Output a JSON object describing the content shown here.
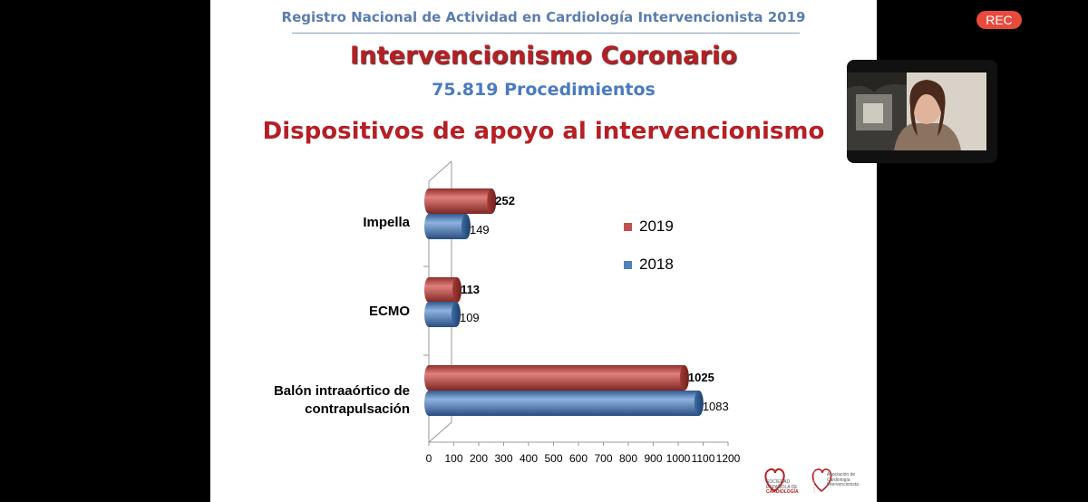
{
  "app": {
    "rec_label": "REC"
  },
  "slide": {
    "header": "Registro Nacional de Actividad en Cardiología Intervencionista 2019",
    "title": "Intervencionismo Coronario",
    "subtitle": "75.819 Procedimientos",
    "section_title": "Dispositivos de apoyo al intervencionismo"
  },
  "chart_data": {
    "type": "bar",
    "orientation": "horizontal",
    "categories": [
      "Impella",
      "ECMO",
      "Balón intraaórtico de contrapulsación"
    ],
    "series": [
      {
        "name": "2019",
        "values": [
          252,
          113,
          1025
        ],
        "color": "#c0504d"
      },
      {
        "name": "2018",
        "values": [
          149,
          109,
          1083
        ],
        "color": "#4f81bd"
      }
    ],
    "xlim": [
      0,
      1200
    ],
    "x_ticks": [
      "0",
      "100",
      "200",
      "300",
      "400",
      "500",
      "600",
      "700",
      "800",
      "900",
      "1000",
      "1100",
      "1200"
    ],
    "data_labels": {
      "2019": [
        "252",
        "113",
        "1025"
      ],
      "2018": [
        "149",
        "109",
        "1083"
      ]
    },
    "category_label_lines": [
      [
        "Impella"
      ],
      [
        "ECMO"
      ],
      [
        "Balón intraaórtico de",
        "contrapulsación"
      ]
    ],
    "legend": [
      "2019",
      "2018"
    ],
    "style": "3d-cylinder",
    "grid": false
  },
  "logos": {
    "sec_lines": [
      "SOCIEDAD",
      "ESPAÑOLA DE",
      "CARDIOLOGÍA"
    ],
    "acci_lines": [
      "Asociación de",
      "Cardiología",
      "Intervencionista"
    ]
  },
  "colors": {
    "title_red": "#b52025",
    "header_blue": "#5a7dae",
    "rec_red": "#e84a3c"
  }
}
